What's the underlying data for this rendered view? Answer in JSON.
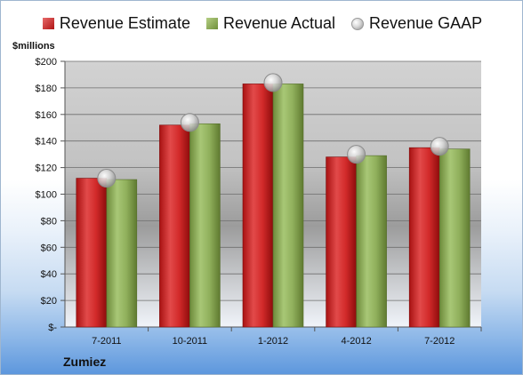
{
  "legend": {
    "estimate": "Revenue Estimate",
    "actual": "Revenue Actual",
    "gaap": "Revenue GAAP"
  },
  "company": "Zumiez",
  "colors": {
    "estimate": "#c62424",
    "actual": "#8aab55",
    "gaap": "#c8c8c8"
  },
  "chart_data": {
    "type": "bar",
    "ylabel": "$millions",
    "categories": [
      "7-2011",
      "10-2011",
      "1-2012",
      "4-2012",
      "7-2012"
    ],
    "series": [
      {
        "name": "Revenue Estimate",
        "values": [
          112,
          152,
          183,
          128,
          135
        ]
      },
      {
        "name": "Revenue Actual",
        "values": [
          111,
          153,
          183,
          129,
          134
        ]
      },
      {
        "name": "Revenue GAAP",
        "type": "scatter",
        "values": [
          112,
          154,
          184,
          130,
          136
        ]
      }
    ],
    "ylim": [
      0,
      200
    ],
    "yticks": [
      0,
      20,
      40,
      60,
      80,
      100,
      120,
      140,
      160,
      180,
      200
    ],
    "ytick_labels": [
      "$-",
      "$20",
      "$40",
      "$60",
      "$80",
      "$100",
      "$120",
      "$140",
      "$160",
      "$180",
      "$200"
    ],
    "grid": true,
    "legend_position": "top"
  }
}
